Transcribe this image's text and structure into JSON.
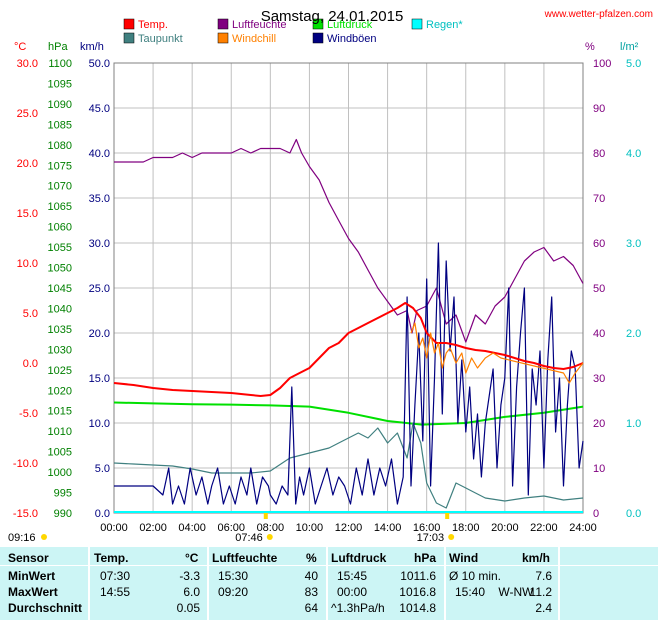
{
  "chart_data": {
    "type": "line",
    "title": "Samstag, 24.01.2015",
    "source": "www.wetter-pfalzen.com",
    "legend": [
      {
        "name": "Temp.",
        "color": "#ff0000"
      },
      {
        "name": "Taupunkt",
        "color": "#408080"
      },
      {
        "name": "Luftfeuchte",
        "color": "#800080"
      },
      {
        "name": "Windchill",
        "color": "#ff8000"
      },
      {
        "name": "Luftdruck",
        "color": "#00e000"
      },
      {
        "name": "Windböen",
        "color": "#000080"
      },
      {
        "name": "Regen*",
        "color": "#00ffff"
      }
    ],
    "axes": {
      "temp": {
        "unit": "°C",
        "ylim": [
          -15,
          30
        ],
        "ticks": [
          "30.0",
          "25.0",
          "20.0",
          "15.0",
          "10.0",
          "5.0",
          "0.0",
          "-5.0",
          "-10.0",
          "-15.0"
        ],
        "color": "#ff0000"
      },
      "pressure": {
        "unit": "hPa",
        "ylim": [
          990,
          1100
        ],
        "ticks": [
          "1100",
          "1095",
          "1090",
          "1085",
          "1080",
          "1075",
          "1070",
          "1065",
          "1060",
          "1055",
          "1050",
          "1045",
          "1040",
          "1035",
          "1030",
          "1025",
          "1020",
          "1015",
          "1010",
          "1005",
          "1000",
          "995",
          "990"
        ],
        "color": "#00a000"
      },
      "wind": {
        "unit": "km/h",
        "ylim": [
          0,
          50
        ],
        "ticks": [
          "50.0",
          "45.0",
          "40.0",
          "35.0",
          "30.0",
          "25.0",
          "20.0",
          "15.0",
          "10.0",
          "5.0",
          "0.0"
        ],
        "color": "#000080"
      },
      "humidity": {
        "unit": "%",
        "ylim": [
          0,
          100
        ],
        "ticks": [
          "100",
          "90",
          "80",
          "70",
          "60",
          "50",
          "40",
          "30",
          "20",
          "10",
          "0"
        ],
        "color": "#800080"
      },
      "rain": {
        "unit": "l/m²",
        "ylim": [
          0,
          5
        ],
        "ticks": [
          "5.0",
          "4.0",
          "3.0",
          "2.0",
          "1.0",
          "0.0"
        ],
        "color": "#00c0c0"
      },
      "x": {
        "xlim": [
          0,
          24
        ],
        "ticks": [
          "00:00",
          "02:00",
          "04:00",
          "06:00",
          "08:00",
          "10:00",
          "12:00",
          "14:00",
          "16:00",
          "18:00",
          "20:00",
          "22:00",
          "24:00"
        ]
      }
    },
    "sun": {
      "sunrise": "07:46",
      "sunset": "17:03",
      "moonrise": "09:16"
    },
    "series": [
      {
        "name": "Temp.",
        "axis": "temp",
        "color": "#ff0000",
        "x": [
          0,
          1,
          2,
          3,
          4,
          5,
          6,
          7,
          7.5,
          8,
          8.5,
          9,
          9.5,
          10,
          10.5,
          11,
          11.5,
          12,
          12.5,
          13,
          13.5,
          14,
          14.5,
          14.9,
          15.3,
          15.7,
          16,
          16.5,
          17,
          17.5,
          18,
          18.5,
          19,
          19.5,
          20,
          20.5,
          21,
          21.5,
          22,
          22.5,
          23,
          23.5,
          24
        ],
        "y": [
          -2.0,
          -2.2,
          -2.5,
          -2.7,
          -2.8,
          -2.9,
          -3.0,
          -3.2,
          -3.3,
          -3.2,
          -2.5,
          -1.5,
          -1.0,
          -0.5,
          0.5,
          1.5,
          2.0,
          3.0,
          3.5,
          4.0,
          4.5,
          5.0,
          5.5,
          6.0,
          5.5,
          4.5,
          3.0,
          2.0,
          2.0,
          1.8,
          1.5,
          1.3,
          1.2,
          1.0,
          0.8,
          0.5,
          0.2,
          0.0,
          -0.3,
          -0.5,
          -0.6,
          -0.4,
          0.0
        ]
      },
      {
        "name": "Windchill",
        "axis": "temp",
        "color": "#ff8000",
        "x": [
          15.2,
          15.4,
          15.6,
          15.8,
          16,
          16.2,
          16.4,
          16.6,
          16.8,
          17,
          17.2,
          17.5,
          17.8,
          18,
          18.3,
          18.6,
          19,
          19.4,
          19.8,
          23,
          23.3,
          23.6,
          24
        ],
        "y": [
          3.0,
          4.0,
          1.5,
          2.5,
          0.5,
          3.0,
          1.0,
          2.0,
          -0.5,
          1.0,
          1.5,
          0.0,
          1.0,
          -1.0,
          0.5,
          -0.5,
          0.5,
          1.0,
          0.5,
          -1.0,
          -2.0,
          -1.0,
          0.0
        ]
      },
      {
        "name": "Taupunkt",
        "axis": "temp",
        "color": "#408080",
        "x": [
          0,
          1,
          2,
          3,
          4,
          5,
          6,
          7,
          8,
          9,
          10,
          11,
          11.5,
          12,
          12.5,
          13,
          13.5,
          14,
          14.5,
          15,
          15.3,
          15.7,
          16,
          16.5,
          17,
          17.5,
          18,
          18.5,
          19,
          20,
          21,
          22,
          23,
          24
        ],
        "y": [
          -10.0,
          -10.1,
          -10.2,
          -10.3,
          -10.6,
          -11.0,
          -11.0,
          -11.0,
          -10.8,
          -9.5,
          -9.0,
          -8.5,
          -8.0,
          -7.5,
          -7.0,
          -7.5,
          -6.5,
          -8.0,
          -7.0,
          -9.5,
          -6.0,
          -8.0,
          -12.0,
          -14.0,
          -14.5,
          -12.0,
          -12.5,
          -13.0,
          -13.5,
          -13.8,
          -13.5,
          -13.3,
          -13.7,
          -13.5
        ]
      },
      {
        "name": "Luftdruck",
        "axis": "pressure",
        "color": "#00e000",
        "x": [
          0,
          2,
          4,
          6,
          8,
          10,
          12,
          14,
          15.75,
          18,
          20,
          22,
          24
        ],
        "y": [
          1017.0,
          1016.8,
          1016.6,
          1016.5,
          1016.3,
          1016.0,
          1014.5,
          1012.5,
          1011.6,
          1012.0,
          1013.5,
          1014.5,
          1016.0
        ]
      },
      {
        "name": "Luftfeuchte",
        "axis": "humidity",
        "color": "#800080",
        "x": [
          0,
          0.5,
          1,
          1.5,
          2,
          2.5,
          3,
          3.5,
          4,
          4.5,
          5,
          5.5,
          6,
          6.5,
          7,
          7.5,
          8,
          8.5,
          9,
          9.33,
          9.6,
          10,
          10.5,
          11,
          11.5,
          12,
          12.5,
          13,
          13.5,
          14,
          14.5,
          15,
          15.25,
          15.5,
          16,
          16.5,
          17,
          17.5,
          18,
          18.5,
          19,
          19.5,
          20,
          20.5,
          21,
          21.5,
          22,
          22.5,
          23,
          23.5,
          24
        ],
        "y": [
          78,
          78,
          78,
          78,
          79,
          79,
          79,
          80,
          79,
          80,
          80,
          80,
          80,
          81,
          80,
          81,
          81,
          81,
          80,
          83,
          80,
          77,
          74,
          69,
          65,
          61,
          58,
          54,
          50,
          47,
          44,
          45,
          40,
          45,
          46,
          50,
          42,
          44,
          38,
          44,
          42,
          46,
          48,
          52,
          56,
          58,
          59,
          56,
          57,
          55,
          51
        ]
      },
      {
        "name": "Windböen",
        "axis": "wind",
        "color": "#000080",
        "x": [
          0,
          1,
          2,
          2.5,
          2.8,
          3,
          3.3,
          3.6,
          3.9,
          4.2,
          4.5,
          4.8,
          5,
          5.3,
          5.6,
          5.9,
          6.2,
          6.5,
          6.8,
          7,
          7.3,
          7.6,
          7.9,
          8,
          8.3,
          8.6,
          8.9,
          9.1,
          9.3,
          9.5,
          9.7,
          10,
          10.3,
          10.6,
          10.9,
          11.2,
          11.5,
          11.8,
          12.1,
          12.4,
          12.7,
          13,
          13.3,
          13.6,
          13.9,
          14.2,
          14.5,
          14.8,
          15,
          15.2,
          15.4,
          15.6,
          15.8,
          16,
          16.2,
          16.4,
          16.6,
          16.8,
          17,
          17.2,
          17.4,
          17.6,
          17.8,
          18,
          18.2,
          18.4,
          18.6,
          18.8,
          19,
          19.2,
          19.4,
          19.6,
          19.8,
          20,
          20.2,
          20.4,
          20.6,
          20.8,
          21,
          21.2,
          21.4,
          21.6,
          21.8,
          22,
          22.2,
          22.4,
          22.6,
          22.8,
          23,
          23.2,
          23.4,
          23.6,
          23.8,
          24
        ],
        "y": [
          3,
          3,
          3,
          2,
          5,
          1,
          3,
          1,
          5,
          2,
          4,
          1,
          3,
          5,
          1,
          3,
          1,
          4,
          2,
          5,
          1,
          4,
          3,
          2,
          1,
          3,
          2,
          14,
          1,
          4,
          2,
          5,
          1,
          3,
          5,
          2,
          4,
          3,
          1,
          5,
          2,
          6,
          2,
          5,
          3,
          6,
          1,
          4,
          24,
          3,
          12,
          20,
          8,
          26,
          3,
          15,
          30,
          11,
          28,
          18,
          24,
          10,
          17,
          9,
          14,
          6,
          11,
          4,
          10,
          13,
          16,
          5,
          12,
          15,
          25,
          3,
          14,
          20,
          25,
          2,
          16,
          12,
          18,
          5,
          17,
          24,
          9,
          15,
          3,
          12,
          18,
          16,
          5,
          8
        ]
      }
    ],
    "table": {
      "headers": [
        "Sensor",
        "Temp.",
        "°C",
        "Luftfeuchte",
        "%",
        "Luftdruck",
        "hPa",
        "Wind",
        "km/h"
      ],
      "rows": [
        {
          "label": "MinWert",
          "temp_time": "07:30",
          "temp": "-3.3",
          "hum_time": "15:30",
          "hum": "40",
          "press_time": "15:45",
          "press": "1011.6",
          "wind_label": "Ø 10 min.",
          "wind": "7.6"
        },
        {
          "label": "MaxWert",
          "temp_time": "14:55",
          "temp": "6.0",
          "hum_time": "09:20",
          "hum": "83",
          "press_time": "00:00",
          "press": "1016.8",
          "wind_label": "15:40    W-NW",
          "wind": "11.2"
        },
        {
          "label": "Durchschnitt",
          "temp_time": "",
          "temp": "0.05",
          "hum_time": "",
          "hum": "64",
          "press_time": "^1.3hPa/h",
          "press": "1014.8",
          "wind_label": "",
          "wind": "2.4"
        }
      ]
    }
  }
}
